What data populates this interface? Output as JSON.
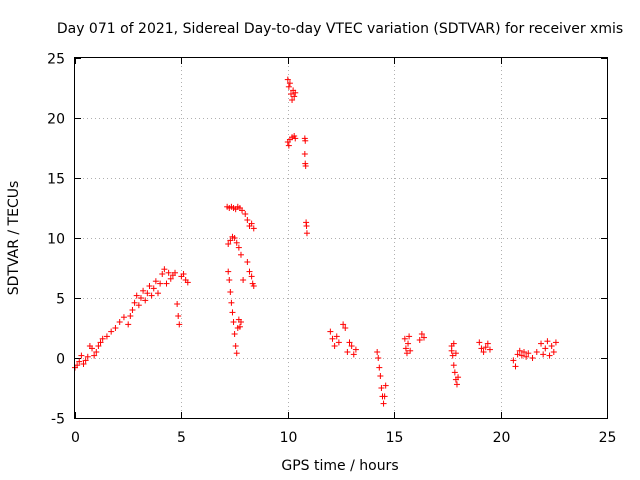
{
  "chart_data": {
    "type": "scatter",
    "title": "Day 071 of 2021, Sidereal Day-to-day VTEC variation (SDTVAR) for receiver xmis",
    "xlabel": "GPS time / hours",
    "ylabel": "SDTVAR / TECUs",
    "xlim": [
      0,
      25
    ],
    "ylim": [
      -5,
      25
    ],
    "xticks": [
      "0",
      "5",
      "10",
      "15",
      "20",
      "25"
    ],
    "yticks": [
      "-5",
      "0",
      "5",
      "10",
      "15",
      "20",
      "25"
    ],
    "xtick_values": [
      0,
      5,
      10,
      15,
      20,
      25
    ],
    "ytick_values": [
      -5,
      0,
      5,
      10,
      15,
      20,
      25
    ],
    "grid": true,
    "marker": "+",
    "series_color": "#ff0000",
    "series": [
      {
        "name": "SDTVAR",
        "x": [
          0.0,
          0.1,
          0.2,
          0.3,
          0.4,
          0.5,
          0.6,
          0.7,
          0.8,
          0.9,
          1.0,
          1.1,
          1.2,
          1.3,
          1.5,
          1.7,
          1.9,
          2.1,
          2.3,
          2.5,
          2.6,
          2.7,
          2.8,
          2.9,
          3.0,
          3.1,
          3.2,
          3.3,
          3.4,
          3.5,
          3.6,
          3.7,
          3.8,
          3.9,
          4.0,
          4.1,
          4.2,
          4.3,
          4.4,
          4.5,
          4.6,
          4.7,
          4.8,
          4.85,
          4.9,
          5.0,
          5.1,
          5.2,
          5.3,
          7.2,
          7.25,
          7.3,
          7.35,
          7.4,
          7.45,
          7.5,
          7.55,
          7.6,
          7.65,
          7.7,
          7.75,
          7.8,
          7.9,
          7.15,
          7.25,
          7.35,
          7.45,
          7.55,
          7.65,
          7.75,
          7.85,
          8.0,
          8.1,
          8.2,
          8.3,
          8.4,
          7.2,
          7.3,
          7.4,
          7.5,
          7.6,
          7.7,
          7.8,
          8.1,
          8.2,
          8.3,
          8.35,
          8.4,
          10.0,
          10.05,
          10.1,
          10.15,
          10.2,
          10.25,
          10.3,
          10.35,
          10.0,
          10.05,
          10.1,
          10.2,
          10.3,
          10.35,
          10.8,
          10.82,
          10.8,
          10.82,
          10.84,
          10.86,
          10.88,
          10.9,
          12.0,
          12.1,
          12.2,
          12.3,
          12.4,
          12.6,
          12.7,
          12.8,
          12.9,
          13.0,
          13.1,
          13.2,
          14.2,
          14.25,
          14.3,
          14.35,
          14.4,
          14.45,
          14.5,
          14.55,
          14.6,
          15.5,
          15.55,
          15.6,
          15.65,
          15.7,
          15.75,
          16.2,
          16.3,
          16.4,
          17.7,
          17.75,
          17.8,
          17.85,
          17.9,
          17.95,
          18.0,
          17.7,
          17.8,
          17.9,
          19.0,
          19.1,
          19.2,
          19.3,
          19.4,
          19.5,
          20.6,
          20.7,
          20.8,
          20.9,
          21.0,
          21.1,
          21.2,
          21.3,
          21.5,
          21.7,
          21.9,
          22.0,
          22.1,
          22.2,
          22.3,
          22.4,
          22.5,
          22.6
        ],
        "y": [
          -0.8,
          -0.6,
          -0.3,
          0.2,
          -0.5,
          -0.2,
          0.1,
          1.0,
          0.8,
          0.2,
          0.5,
          1.0,
          1.3,
          1.6,
          1.8,
          2.2,
          2.5,
          3.0,
          3.4,
          2.8,
          3.5,
          4.0,
          4.6,
          5.2,
          4.4,
          5.0,
          5.6,
          4.8,
          5.4,
          6.0,
          5.2,
          5.8,
          6.4,
          5.4,
          6.2,
          7.0,
          7.4,
          6.2,
          7.1,
          6.6,
          6.9,
          7.1,
          4.5,
          3.5,
          2.8,
          6.8,
          7.0,
          6.5,
          6.3,
          7.2,
          6.5,
          5.5,
          4.6,
          3.8,
          3.0,
          2.0,
          1.0,
          0.4,
          2.5,
          3.2,
          2.6,
          3.0,
          6.5,
          12.6,
          12.5,
          12.6,
          12.5,
          12.4,
          12.6,
          12.5,
          12.3,
          12.0,
          11.5,
          11.0,
          11.2,
          10.8,
          9.5,
          9.8,
          10.1,
          10.0,
          9.6,
          9.2,
          8.6,
          8.0,
          7.2,
          6.8,
          6.2,
          6.0,
          23.2,
          22.6,
          22.9,
          22.0,
          21.5,
          22.3,
          21.8,
          22.1,
          18.0,
          17.7,
          18.2,
          18.4,
          18.5,
          18.3,
          18.3,
          18.1,
          17.0,
          16.2,
          16.0,
          11.3,
          11.0,
          10.4,
          2.2,
          1.6,
          1.0,
          1.8,
          1.3,
          2.8,
          2.5,
          0.5,
          1.3,
          1.0,
          0.3,
          0.7,
          0.5,
          0.0,
          -0.8,
          -1.5,
          -2.5,
          -3.2,
          -3.8,
          -3.2,
          -2.3,
          1.6,
          0.8,
          0.4,
          1.2,
          1.8,
          0.6,
          1.5,
          2.0,
          1.7,
          1.0,
          0.2,
          -0.6,
          -1.2,
          -1.8,
          -2.2,
          -1.6,
          0.6,
          1.2,
          0.4,
          1.3,
          0.8,
          0.5,
          0.9,
          1.2,
          0.7,
          -0.2,
          -0.7,
          0.3,
          0.6,
          0.2,
          0.5,
          0.1,
          0.4,
          0.0,
          0.5,
          1.2,
          0.3,
          0.8,
          1.4,
          0.2,
          1.0,
          0.5,
          1.3
        ]
      }
    ]
  }
}
